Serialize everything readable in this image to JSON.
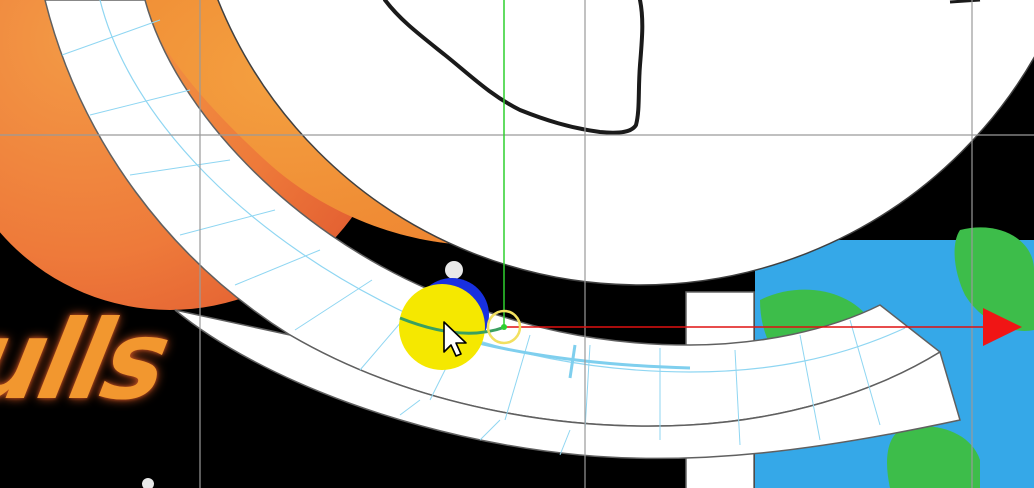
{
  "canvas": {
    "background_color": "#000000",
    "layer_text": "ulls",
    "colors": {
      "guide_line": "#9a9a9a",
      "mesh_fill": "#ffffff",
      "mesh_wire": "#7fd3f0",
      "selection_handle": "#f5e800",
      "blue_point": "#1830e0",
      "x_axis": "#e01010",
      "y_axis": "#2fd02f",
      "orange_art": "#f08a33",
      "planet_blue": "#35a8e8",
      "planet_green": "#3dbd4a"
    },
    "icons": {
      "cursor": "mouse-pointer-arrow-icon",
      "x_axis": "x-axis-arrow-icon",
      "y_axis": "y-axis-line-icon",
      "pivot": "pivot-point-icon",
      "selection": "selection-highlight-icon",
      "vertex": "vertex-point-icon"
    }
  }
}
